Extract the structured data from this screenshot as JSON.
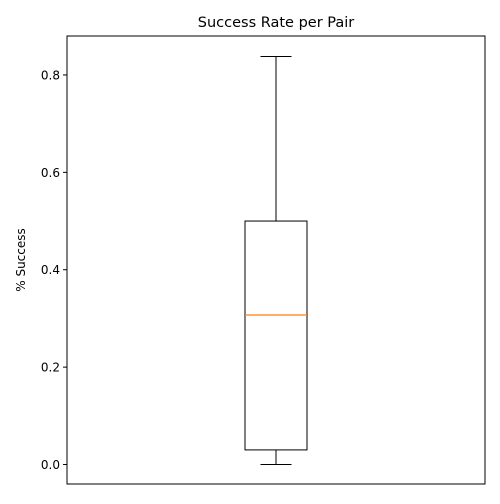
{
  "chart_data": {
    "type": "box",
    "title": "Success Rate per Pair",
    "xlabel": "",
    "ylabel": "% Success",
    "ylim": [
      -0.04,
      0.88
    ],
    "yticks": [
      0.0,
      0.2,
      0.4,
      0.6,
      0.8
    ],
    "ytick_labels": [
      "0.0",
      "0.2",
      "0.4",
      "0.6",
      "0.8"
    ],
    "grid": false,
    "legend": "none",
    "boxes": [
      {
        "min": 0.0,
        "q1": 0.03,
        "median": 0.307,
        "q3": 0.5,
        "max": 0.838
      }
    ],
    "colors": {
      "box": "#000000",
      "median": "#ff7f0e",
      "whisker": "#000000"
    }
  }
}
